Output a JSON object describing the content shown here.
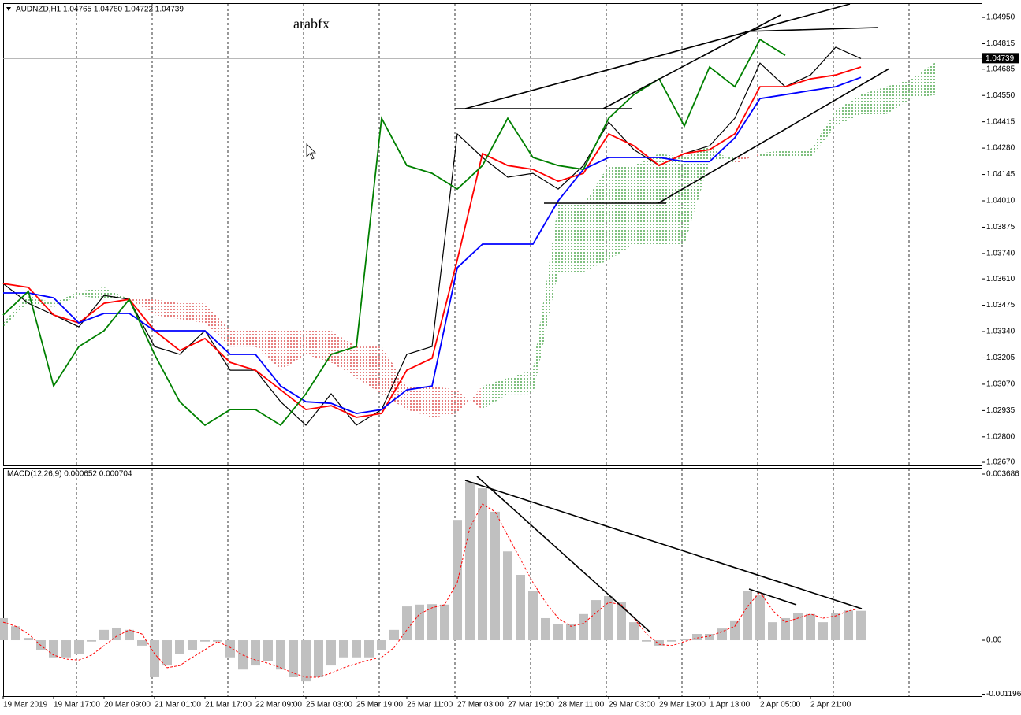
{
  "chart_data": [
    {
      "type": "line",
      "title": "AUDNZD,H1 1.04765 1.04780 1.04722 1.04739",
      "annotation": "arabfx",
      "last_price": 1.04739,
      "categories": [
        "19 Mar 2019",
        null,
        "19 Mar 17:00",
        null,
        "20 Mar 09:00",
        null,
        "21 Mar 01:00",
        null,
        "21 Mar 17:00",
        null,
        "22 Mar 09:00",
        null,
        "25 Mar 03:00",
        null,
        "25 Mar 19:00",
        null,
        "26 Mar 11:00",
        null,
        "27 Mar 03:00",
        null,
        "27 Mar 19:00",
        null,
        "28 Mar 11:00",
        null,
        "29 Mar 03:00",
        null,
        "29 Mar 19:00",
        null,
        "1 Apr 13:00",
        null,
        "2 Apr 05:00",
        null,
        "2 Apr 21:00",
        null,
        null,
        null,
        null,
        null
      ],
      "ylim": [
        1.02654,
        1.05023
      ],
      "yticks": [
        {
          "value": 1.0495,
          "label": "1.04950"
        },
        1.04815,
        1.04685,
        {
          "value": 1.0455,
          "label": "1.04550"
        },
        1.04415,
        {
          "value": 1.0428,
          "label": "1.04280"
        },
        1.04145,
        {
          "value": 1.0401,
          "label": "1.04010"
        },
        1.03875,
        {
          "value": 1.0374,
          "label": "1.03740"
        },
        {
          "value": 1.0361,
          "label": "1.03610"
        },
        1.03475,
        {
          "value": 1.0334,
          "label": "1.03340"
        },
        1.03205,
        {
          "value": 1.0307,
          "label": "1.03070"
        },
        1.02935,
        {
          "value": 1.028,
          "label": "1.02800"
        },
        {
          "value": 1.0267,
          "label": "1.02670"
        }
      ],
      "grid": true,
      "series": [
        {
          "color": "#000000",
          "values": [
            1.03586,
            1.03485,
            1.03425,
            1.03364,
            1.03525,
            1.03505,
            1.03263,
            1.03223,
            1.03344,
            1.03142,
            1.03142,
            1.0298,
            1.0286,
            1.03021,
            1.0286,
            1.0294,
            1.03223,
            1.03263,
            1.04353,
            1.04232,
            1.04131,
            1.04151,
            1.0407,
            1.04191,
            1.04413,
            1.04272,
            1.04191,
            1.04252,
            1.04292,
            1.04433,
            1.04716,
            1.04595,
            1.04655,
            1.04797,
            1.04739,
            null,
            null,
            null
          ]
        },
        {
          "color": "#ff0000",
          "values": [
            1.03586,
            1.03566,
            1.03425,
            1.03384,
            1.03485,
            1.03505,
            1.03344,
            1.03243,
            1.03304,
            1.03182,
            1.03142,
            1.03041,
            1.0294,
            1.0296,
            1.029,
            1.0292,
            1.03142,
            1.03203,
            1.03707,
            1.04252,
            1.04191,
            1.04171,
            1.0411,
            1.04151,
            1.04353,
            1.04292,
            1.04191,
            1.04252,
            1.04272,
            1.04353,
            1.04595,
            1.04595,
            1.04635,
            1.04655,
            1.04696,
            null,
            null,
            null
          ]
        },
        {
          "color": "#0000ff",
          "values": [
            1.03538,
            1.03538,
            1.03513,
            1.03384,
            1.03433,
            1.03433,
            1.03344,
            1.03344,
            1.03344,
            1.03223,
            1.03223,
            1.03061,
            1.0298,
            1.02972,
            1.0292,
            1.0294,
            1.03041,
            1.03061,
            1.03667,
            1.03788,
            1.03788,
            1.03788,
            1.0401,
            1.04171,
            1.04232,
            1.04232,
            1.04232,
            1.04211,
            1.04211,
            1.04333,
            1.04534,
            1.04554,
            1.04575,
            1.04595,
            1.04643,
            null,
            null,
            null
          ]
        },
        {
          "color": "#008000",
          "values": [
            1.03425,
            1.03546,
            1.03061,
            1.03263,
            1.03344,
            1.03505,
            1.03223,
            1.0298,
            1.0286,
            1.0294,
            1.0294,
            1.0286,
            1.03021,
            1.03223,
            1.03263,
            1.04433,
            1.04191,
            1.04151,
            1.0407,
            1.04191,
            1.04433,
            1.04232,
            1.04191,
            1.04171,
            1.04433,
            1.04554,
            1.04635,
            1.04393,
            1.04696,
            1.04595,
            1.04837,
            1.04756,
            null,
            null,
            null,
            null,
            null,
            null
          ]
        },
        {
          "color": "#008000",
          "style": "dotted",
          "values": [
            1.03384,
            1.03525,
            1.03485,
            1.03546,
            1.03566,
            1.03505,
            1.03425,
            1.03404,
            1.03384,
            1.03263,
            1.03263,
            1.03142,
            1.03223,
            1.03182,
            1.03102,
            1.03021,
            1.0294,
            1.029,
            1.0292,
            1.03061,
            1.03102,
            1.03142,
            1.0399,
            1.0399,
            1.04191,
            1.04191,
            1.04252,
            1.04232,
            1.04292,
            1.04199,
            1.04252,
            1.04272,
            1.04272,
            1.04474,
            1.04554,
            1.04595,
            1.04635,
            1.04724
          ]
        },
        {
          "color": "#cc0000",
          "style": "dotted",
          "values": [
            1.03364,
            1.03485,
            1.03465,
            1.03525,
            1.03505,
            1.03513,
            1.03505,
            1.03485,
            1.03485,
            1.03344,
            1.03344,
            1.03344,
            1.03344,
            1.03344,
            1.03263,
            1.03263,
            1.03061,
            1.03061,
            1.03041,
            1.0294,
            1.03021,
            1.03021,
            1.03646,
            1.03646,
            1.03707,
            1.03788,
            1.03788,
            1.03788,
            1.04211,
            1.0424,
            1.04232,
            1.04232,
            1.04232,
            1.04393,
            1.04454,
            1.04454,
            1.04534,
            1.04554
          ]
        }
      ]
    },
    {
      "type": "bar",
      "title": "MACD(12,26,9) 0.000652 0.000704",
      "ylim": [
        -0.00124,
        0.003826
      ],
      "yticks": [
        0.003686,
        {
          "value": 0,
          "label": "0.00"
        },
        -0.001196
      ],
      "series": [
        {
          "type": "bar",
          "color": "#c0c0c0",
          "values": [
            0.00049,
            0.00031,
            5e-05,
            -0.00021,
            -0.00038,
            -0.00038,
            -0.0003,
            -3e-05,
            0.00023,
            0.00028,
            0.00023,
            -0.00012,
            -0.00082,
            -0.00056,
            -0.0003,
            -0.00021,
            -3e-05,
            -3e-05,
            -0.00038,
            -0.00065,
            -0.00056,
            -0.00047,
            -0.00065,
            -0.00082,
            -0.00091,
            -0.00082,
            -0.00056,
            -0.00038,
            -0.00038,
            -0.00038,
            -0.00021,
            0.00023,
            0.00075,
            0.00079,
            0.0008,
            0.00079,
            0.00267,
            0.00351,
            0.00337,
            0.00285,
            0.00197,
            0.00145,
            0.0011,
            0.00049,
            0.00035,
            0.00035,
            0.00058,
            0.00089,
            0.00098,
            0.00084,
            0.0004,
            -3e-05,
            -0.00012,
            -3e-05,
            2e-05,
            0.00014,
            0.00014,
            0.00026,
            0.00044,
            0.0011,
            0.00101,
            0.0004,
            0.00049,
            0.00061,
            0.00058,
            0.0004,
            0.00061,
            0.00066,
            0.000652
          ]
        },
        {
          "type": "line",
          "color": "#ff0000",
          "style": "dashed",
          "values": [
            0.0004,
            0.00031,
            0.00014,
            -0.00012,
            -0.00033,
            -0.00042,
            -0.00044,
            -0.00033,
            -0.00012,
            9e-05,
            0.00023,
            0.00014,
            -0.0003,
            -0.00061,
            -0.00056,
            -0.00038,
            -0.00021,
            -3e-05,
            -0.00016,
            -0.00033,
            -0.00044,
            -0.00051,
            -0.00061,
            -0.00073,
            -0.00082,
            -0.00082,
            -0.00073,
            -0.00061,
            -0.00052,
            -0.00044,
            -0.00038,
            -0.00016,
            0.00023,
            0.00058,
            0.00072,
            0.00079,
            0.00128,
            0.0025,
            0.00302,
            0.00285,
            0.00232,
            0.0018,
            0.00128,
            0.00084,
            0.00049,
            0.00031,
            0.00037,
            0.00061,
            0.00084,
            0.00079,
            0.00049,
            0.00014,
            -9e-05,
            -0.00012,
            -3e-05,
            5e-05,
            9e-05,
            0.00019,
            0.00031,
            0.00075,
            0.00107,
            0.00066,
            0.0004,
            0.00049,
            0.00058,
            0.00049,
            0.00054,
            0.00065,
            0.000704
          ]
        }
      ]
    }
  ]
}
